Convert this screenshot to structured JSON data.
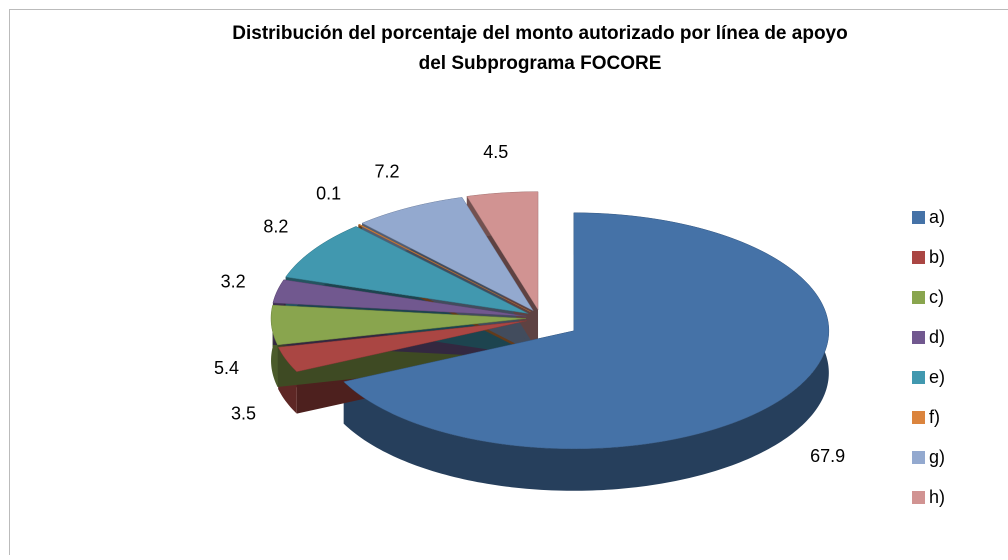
{
  "chart_data": {
    "type": "pie3d",
    "title": [
      "Distribución  del porcentaje del monto autorizado por línea de apoyo",
      "del Subprograma FOCORE"
    ],
    "categories": [
      "a)",
      "b)",
      "c)",
      "d)",
      "e)",
      "f)",
      "g)",
      "h)"
    ],
    "values": [
      67.9,
      3.5,
      5.4,
      3.2,
      8.2,
      0.1,
      7.2,
      4.5
    ],
    "colors": [
      "#4572a7",
      "#aa4643",
      "#89a54e",
      "#71588f",
      "#4198af",
      "#db843d",
      "#93a9cf",
      "#d19392"
    ],
    "legend": "right"
  }
}
